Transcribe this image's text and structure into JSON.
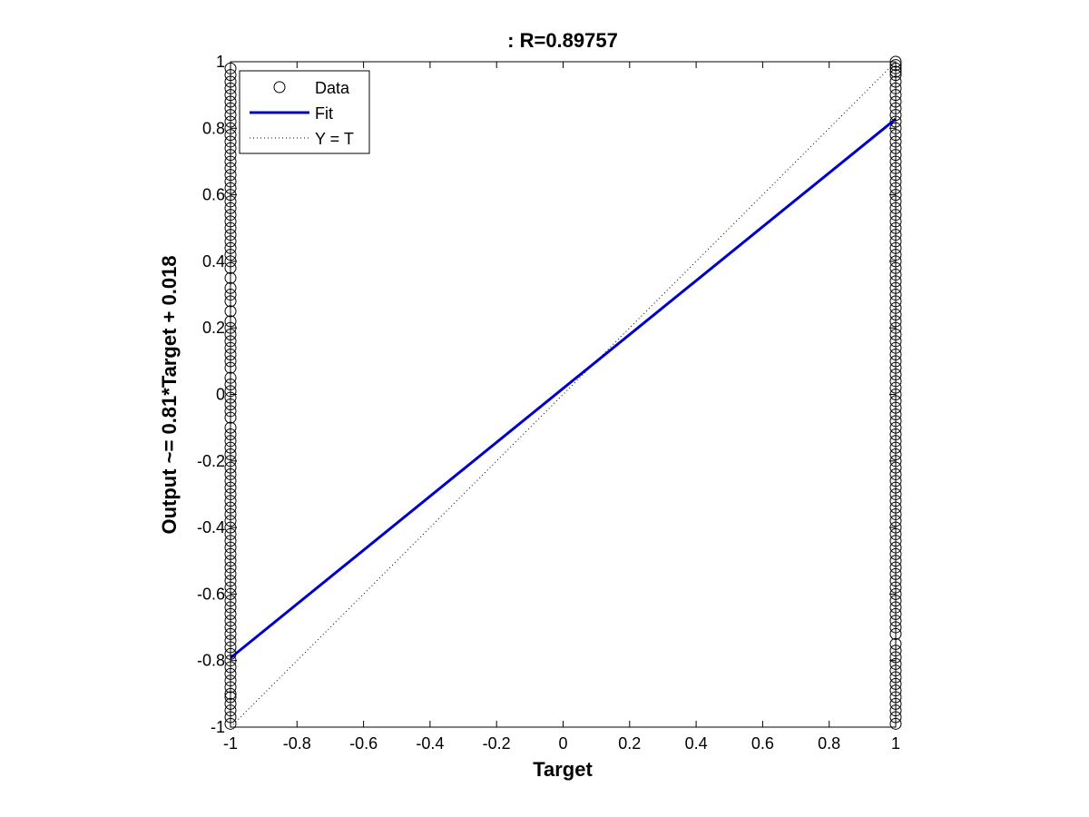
{
  "chart_data": {
    "type": "scatter",
    "title": ": R=0.89757",
    "xlabel": "Target",
    "ylabel": "Output ~= 0.81*Target + 0.018",
    "xlim": [
      -1,
      1
    ],
    "ylim": [
      -1,
      1
    ],
    "xticks": [
      -1,
      -0.8,
      -0.6,
      -0.4,
      -0.2,
      0,
      0.2,
      0.4,
      0.6,
      0.8,
      1
    ],
    "yticks": [
      -1,
      -0.8,
      -0.6,
      -0.4,
      -0.2,
      0,
      0.2,
      0.4,
      0.6,
      0.8,
      1
    ],
    "xtick_labels": [
      "-1",
      "-0.8",
      "-0.6",
      "-0.4",
      "-0.2",
      "0",
      "0.2",
      "0.4",
      "0.6",
      "0.8",
      "1"
    ],
    "ytick_labels": [
      "-1",
      "-0.8",
      "-0.6",
      "-0.4",
      "-0.2",
      "0",
      "0.2",
      "0.4",
      "0.6",
      "0.8",
      "1"
    ],
    "grid": false,
    "legend": {
      "placement": "top-left",
      "entries": [
        {
          "label": "Data",
          "style": "marker-circle",
          "color": "#000000"
        },
        {
          "label": "Fit",
          "style": "solid",
          "color": "#0000cc"
        },
        {
          "label": "Y = T",
          "style": "dotted",
          "color": "#000000"
        }
      ]
    },
    "series": [
      {
        "name": "Data",
        "kind": "scatter",
        "marker": "circle",
        "color": "#000000",
        "points": [
          [
            -1,
            -0.99
          ],
          [
            -1,
            -0.97
          ],
          [
            -1,
            -0.95
          ],
          [
            -1,
            -0.93
          ],
          [
            -1,
            -0.91
          ],
          [
            -1,
            -0.9
          ],
          [
            -1,
            -0.88
          ],
          [
            -1,
            -0.86
          ],
          [
            -1,
            -0.84
          ],
          [
            -1,
            -0.82
          ],
          [
            -1,
            -0.8
          ],
          [
            -1,
            -0.78
          ],
          [
            -1,
            -0.76
          ],
          [
            -1,
            -0.74
          ],
          [
            -1,
            -0.72
          ],
          [
            -1,
            -0.7
          ],
          [
            -1,
            -0.68
          ],
          [
            -1,
            -0.66
          ],
          [
            -1,
            -0.64
          ],
          [
            -1,
            -0.62
          ],
          [
            -1,
            -0.6
          ],
          [
            -1,
            -0.58
          ],
          [
            -1,
            -0.56
          ],
          [
            -1,
            -0.54
          ],
          [
            -1,
            -0.52
          ],
          [
            -1,
            -0.5
          ],
          [
            -1,
            -0.48
          ],
          [
            -1,
            -0.46
          ],
          [
            -1,
            -0.44
          ],
          [
            -1,
            -0.42
          ],
          [
            -1,
            -0.4
          ],
          [
            -1,
            -0.38
          ],
          [
            -1,
            -0.36
          ],
          [
            -1,
            -0.34
          ],
          [
            -1,
            -0.32
          ],
          [
            -1,
            -0.3
          ],
          [
            -1,
            -0.28
          ],
          [
            -1,
            -0.26
          ],
          [
            -1,
            -0.24
          ],
          [
            -1,
            -0.22
          ],
          [
            -1,
            -0.2
          ],
          [
            -1,
            -0.18
          ],
          [
            -1,
            -0.16
          ],
          [
            -1,
            -0.14
          ],
          [
            -1,
            -0.12
          ],
          [
            -1,
            -0.1
          ],
          [
            -1,
            -0.07
          ],
          [
            -1,
            -0.05
          ],
          [
            -1,
            -0.03
          ],
          [
            -1,
            -0.01
          ],
          [
            -1,
            0.01
          ],
          [
            -1,
            0.03
          ],
          [
            -1,
            0.05
          ],
          [
            -1,
            0.08
          ],
          [
            -1,
            0.1
          ],
          [
            -1,
            0.12
          ],
          [
            -1,
            0.14
          ],
          [
            -1,
            0.16
          ],
          [
            -1,
            0.18
          ],
          [
            -1,
            0.2
          ],
          [
            -1,
            0.22
          ],
          [
            -1,
            0.25
          ],
          [
            -1,
            0.28
          ],
          [
            -1,
            0.3
          ],
          [
            -1,
            0.32
          ],
          [
            -1,
            0.35
          ],
          [
            -1,
            0.38
          ],
          [
            -1,
            0.4
          ],
          [
            -1,
            0.42
          ],
          [
            -1,
            0.44
          ],
          [
            -1,
            0.46
          ],
          [
            -1,
            0.48
          ],
          [
            -1,
            0.5
          ],
          [
            -1,
            0.52
          ],
          [
            -1,
            0.54
          ],
          [
            -1,
            0.56
          ],
          [
            -1,
            0.58
          ],
          [
            -1,
            0.6
          ],
          [
            -1,
            0.62
          ],
          [
            -1,
            0.64
          ],
          [
            -1,
            0.66
          ],
          [
            -1,
            0.68
          ],
          [
            -1,
            0.7
          ],
          [
            -1,
            0.72
          ],
          [
            -1,
            0.74
          ],
          [
            -1,
            0.76
          ],
          [
            -1,
            0.78
          ],
          [
            -1,
            0.8
          ],
          [
            -1,
            0.82
          ],
          [
            -1,
            0.84
          ],
          [
            -1,
            0.86
          ],
          [
            -1,
            0.88
          ],
          [
            -1,
            0.9
          ],
          [
            -1,
            0.92
          ],
          [
            -1,
            0.94
          ],
          [
            -1,
            0.96
          ],
          [
            -1,
            0.98
          ],
          [
            1,
            -0.99
          ],
          [
            1,
            -0.97
          ],
          [
            1,
            -0.95
          ],
          [
            1,
            -0.93
          ],
          [
            1,
            -0.91
          ],
          [
            1,
            -0.89
          ],
          [
            1,
            -0.87
          ],
          [
            1,
            -0.85
          ],
          [
            1,
            -0.83
          ],
          [
            1,
            -0.81
          ],
          [
            1,
            -0.79
          ],
          [
            1,
            -0.77
          ],
          [
            1,
            -0.75
          ],
          [
            1,
            -0.72
          ],
          [
            1,
            -0.7
          ],
          [
            1,
            -0.68
          ],
          [
            1,
            -0.66
          ],
          [
            1,
            -0.64
          ],
          [
            1,
            -0.62
          ],
          [
            1,
            -0.6
          ],
          [
            1,
            -0.58
          ],
          [
            1,
            -0.56
          ],
          [
            1,
            -0.54
          ],
          [
            1,
            -0.52
          ],
          [
            1,
            -0.5
          ],
          [
            1,
            -0.48
          ],
          [
            1,
            -0.46
          ],
          [
            1,
            -0.44
          ],
          [
            1,
            -0.42
          ],
          [
            1,
            -0.4
          ],
          [
            1,
            -0.38
          ],
          [
            1,
            -0.36
          ],
          [
            1,
            -0.34
          ],
          [
            1,
            -0.32
          ],
          [
            1,
            -0.3
          ],
          [
            1,
            -0.28
          ],
          [
            1,
            -0.26
          ],
          [
            1,
            -0.24
          ],
          [
            1,
            -0.22
          ],
          [
            1,
            -0.2
          ],
          [
            1,
            -0.18
          ],
          [
            1,
            -0.16
          ],
          [
            1,
            -0.14
          ],
          [
            1,
            -0.12
          ],
          [
            1,
            -0.1
          ],
          [
            1,
            -0.08
          ],
          [
            1,
            -0.06
          ],
          [
            1,
            -0.04
          ],
          [
            1,
            -0.02
          ],
          [
            1,
            0.0
          ],
          [
            1,
            0.02
          ],
          [
            1,
            0.04
          ],
          [
            1,
            0.06
          ],
          [
            1,
            0.08
          ],
          [
            1,
            0.1
          ],
          [
            1,
            0.12
          ],
          [
            1,
            0.14
          ],
          [
            1,
            0.16
          ],
          [
            1,
            0.18
          ],
          [
            1,
            0.2
          ],
          [
            1,
            0.22
          ],
          [
            1,
            0.24
          ],
          [
            1,
            0.26
          ],
          [
            1,
            0.28
          ],
          [
            1,
            0.3
          ],
          [
            1,
            0.32
          ],
          [
            1,
            0.34
          ],
          [
            1,
            0.36
          ],
          [
            1,
            0.38
          ],
          [
            1,
            0.4
          ],
          [
            1,
            0.42
          ],
          [
            1,
            0.44
          ],
          [
            1,
            0.46
          ],
          [
            1,
            0.48
          ],
          [
            1,
            0.5
          ],
          [
            1,
            0.52
          ],
          [
            1,
            0.54
          ],
          [
            1,
            0.56
          ],
          [
            1,
            0.58
          ],
          [
            1,
            0.6
          ],
          [
            1,
            0.62
          ],
          [
            1,
            0.64
          ],
          [
            1,
            0.66
          ],
          [
            1,
            0.68
          ],
          [
            1,
            0.7
          ],
          [
            1,
            0.72
          ],
          [
            1,
            0.74
          ],
          [
            1,
            0.76
          ],
          [
            1,
            0.78
          ],
          [
            1,
            0.8
          ],
          [
            1,
            0.82
          ],
          [
            1,
            0.84
          ],
          [
            1,
            0.86
          ],
          [
            1,
            0.88
          ],
          [
            1,
            0.9
          ],
          [
            1,
            0.92
          ],
          [
            1,
            0.94
          ],
          [
            1,
            0.96
          ],
          [
            1,
            0.97
          ],
          [
            1,
            0.98
          ],
          [
            1,
            0.99
          ],
          [
            1,
            1.0
          ]
        ]
      },
      {
        "name": "Fit",
        "kind": "line",
        "color": "#0000cc",
        "x": [
          -1,
          1
        ],
        "y": [
          -0.792,
          0.828
        ]
      },
      {
        "name": "Y = T",
        "kind": "line",
        "dash": "dotted",
        "color": "#000000",
        "x": [
          -1,
          1
        ],
        "y": [
          -1,
          1
        ]
      }
    ]
  }
}
